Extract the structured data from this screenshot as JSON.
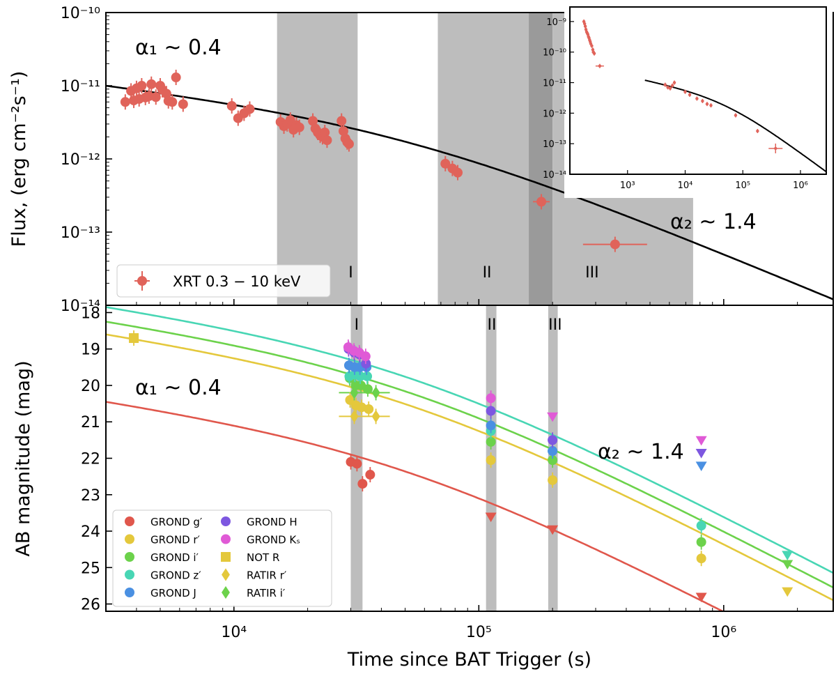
{
  "chart_data": [
    {
      "id": "xray",
      "type": "scatter",
      "ylabel": "Flux, (erg cm⁻²s⁻¹)",
      "xlim": [
        3000,
        2800000
      ],
      "ylim": [
        1e-14,
        1e-10
      ],
      "xscale": "log",
      "yscale": "log",
      "grid": false,
      "legend_placement": "bottom-left",
      "y_ticks": [
        {
          "value": 1e-10,
          "label": "10⁻¹⁰"
        },
        {
          "value": 1e-11,
          "label": "10⁻¹¹"
        },
        {
          "value": 1e-12,
          "label": "10⁻¹²"
        },
        {
          "value": 1e-13,
          "label": "10⁻¹³"
        },
        {
          "value": 1e-14,
          "label": "10⁻¹⁴"
        }
      ],
      "bands": [
        {
          "label": "I",
          "x0": 15000,
          "x1": 32000,
          "shade": "#bdbdbd"
        },
        {
          "label": "II",
          "x0": 68000,
          "x1": 160000,
          "shade": "#bdbdbd"
        },
        {
          "label": "",
          "x0": 160000,
          "x1": 200000,
          "shade": "#9a9a9a"
        },
        {
          "label": "III",
          "x0": 200000,
          "x1": 750000,
          "shade": "#bdbdbd"
        }
      ],
      "band_labels": [
        {
          "text": "I",
          "x": 30000
        },
        {
          "text": "II",
          "x": 108000
        },
        {
          "text": "III",
          "x": 290000
        }
      ],
      "annotations": [
        {
          "text": "α₁ ~ 0.4",
          "x": 4200,
          "y": 5.5e-11
        },
        {
          "text": "α₂ ~ 1.4",
          "x": 470000,
          "y": 1.05e-13
        }
      ],
      "model": {
        "A": 1e-11,
        "t0": 3000,
        "tb": 50000,
        "alpha1": 0.4,
        "alpha2": 1.4,
        "color": "#000000"
      },
      "series": [
        {
          "name": "XRT 0.3 − 10 keV",
          "color": "#e0635a",
          "points": [
            [
              3600,
              6e-12
            ],
            [
              3800,
              8.5e-12
            ],
            [
              3900,
              6.3e-12
            ],
            [
              4000,
              9.2e-12
            ],
            [
              4100,
              6.6e-12
            ],
            [
              4200,
              1e-11
            ],
            [
              4350,
              6.9e-12
            ],
            [
              4500,
              7.2e-12
            ],
            [
              4600,
              1.05e-11
            ],
            [
              4800,
              7e-12
            ],
            [
              5000,
              1e-11
            ],
            [
              5100,
              8.8e-12
            ],
            [
              5300,
              7.8e-12
            ],
            [
              5400,
              6.2e-12
            ],
            [
              5600,
              6e-12
            ],
            [
              5800,
              1.3e-11
            ],
            [
              6200,
              5.6e-12
            ],
            [
              9800,
              5.3e-12
            ],
            [
              10400,
              3.6e-12
            ],
            [
              11000,
              4.2e-12
            ],
            [
              11600,
              4.8e-12
            ],
            [
              15500,
              3.2e-12
            ],
            [
              16000,
              2.8e-12
            ],
            [
              16500,
              3e-12
            ],
            [
              17000,
              3.4e-12
            ],
            [
              17500,
              2.5e-12
            ],
            [
              18000,
              2.9e-12
            ],
            [
              18500,
              2.7e-12
            ],
            [
              21000,
              3.3e-12
            ],
            [
              21500,
              2.6e-12
            ],
            [
              22000,
              2.3e-12
            ],
            [
              22500,
              2.1e-12
            ],
            [
              23000,
              2e-12
            ],
            [
              23500,
              2.3e-12
            ],
            [
              24000,
              1.8e-12
            ],
            [
              27500,
              3.3e-12
            ],
            [
              28000,
              2.4e-12
            ],
            [
              28500,
              1.9e-12
            ],
            [
              29000,
              1.7e-12
            ],
            [
              29500,
              1.6e-12
            ],
            [
              73000,
              8.6e-13
            ],
            [
              78000,
              7.4e-13
            ],
            [
              82000,
              6.5e-13
            ],
            [
              180000,
              2.6e-13
            ],
            [
              360000,
              6.8e-14
            ]
          ]
        }
      ],
      "legend": [
        {
          "label": "XRT 0.3 − 10 keV",
          "marker": "circle",
          "color": "#e0635a"
        }
      ],
      "inset": {
        "xlim": [
          100,
          2800000
        ],
        "ylim": [
          1e-14,
          3e-09
        ],
        "x_ticks": [
          {
            "value": 1000,
            "label": "10³"
          },
          {
            "value": 10000,
            "label": "10⁴"
          },
          {
            "value": 100000,
            "label": "10⁵"
          },
          {
            "value": 1000000,
            "label": "10⁶"
          }
        ],
        "y_ticks": [
          {
            "value": 1e-09,
            "label": "10⁻⁹"
          },
          {
            "value": 1e-10,
            "label": "10⁻¹⁰"
          },
          {
            "value": 1e-11,
            "label": "10⁻¹¹"
          },
          {
            "value": 1e-12,
            "label": "10⁻¹²"
          },
          {
            "value": 1e-13,
            "label": "10⁻¹³"
          },
          {
            "value": 1e-14,
            "label": "10⁻¹⁴"
          }
        ],
        "model_start": 2000,
        "points": [
          [
            175,
            1e-09
          ],
          [
            180,
            8.5e-10
          ],
          [
            185,
            7e-10
          ],
          [
            190,
            5.5e-10
          ],
          [
            195,
            4.6e-10
          ],
          [
            200,
            4.2e-10
          ],
          [
            205,
            3.8e-10
          ],
          [
            210,
            3.2e-10
          ],
          [
            215,
            2.9e-10
          ],
          [
            220,
            2.5e-10
          ],
          [
            225,
            2.2e-10
          ],
          [
            230,
            1.9e-10
          ],
          [
            240,
            1.6e-10
          ],
          [
            250,
            1.2e-10
          ],
          [
            255,
            1e-10
          ],
          [
            265,
            9e-11
          ],
          [
            330,
            3.5e-11
          ],
          [
            4500,
            8.5e-12
          ],
          [
            5000,
            7e-12
          ],
          [
            5500,
            6.5e-12
          ],
          [
            6000,
            8e-12
          ],
          [
            6500,
            1e-11
          ],
          [
            10000,
            5e-12
          ],
          [
            12000,
            4e-12
          ],
          [
            16000,
            3e-12
          ],
          [
            20000,
            2.5e-12
          ],
          [
            24000,
            2e-12
          ],
          [
            28000,
            1.8e-12
          ],
          [
            75000,
            8.5e-13
          ],
          [
            180000,
            2.6e-13
          ],
          [
            370000,
            7e-14
          ]
        ]
      }
    },
    {
      "id": "optical",
      "type": "scatter",
      "xlabel": "Time since BAT Trigger (s)",
      "ylabel": "AB magnitude (mag)",
      "xlim": [
        3000,
        2800000
      ],
      "ylim": [
        26.2,
        17.8
      ],
      "xscale": "log",
      "grid": false,
      "legend_placement": "bottom-left",
      "x_ticks": [
        {
          "value": 10000,
          "label": "10⁴"
        },
        {
          "value": 100000,
          "label": "10⁵"
        },
        {
          "value": 1000000,
          "label": "10⁶"
        }
      ],
      "y_ticks": [
        {
          "value": 18,
          "label": "18"
        },
        {
          "value": 19,
          "label": "19"
        },
        {
          "value": 20,
          "label": "20"
        },
        {
          "value": 21,
          "label": "21"
        },
        {
          "value": 22,
          "label": "22"
        },
        {
          "value": 23,
          "label": "23"
        },
        {
          "value": 24,
          "label": "24"
        },
        {
          "value": 25,
          "label": "25"
        },
        {
          "value": 26,
          "label": "26"
        }
      ],
      "bands": [
        {
          "label": "I",
          "x0": 30000,
          "x1": 33500,
          "shade": "#bdbdbd"
        },
        {
          "label": "II",
          "x0": 107000,
          "x1": 118000,
          "shade": "#bdbdbd"
        },
        {
          "label": "III",
          "x0": 192000,
          "x1": 210000,
          "shade": "#bdbdbd"
        }
      ],
      "band_labels": [
        {
          "text": "I",
          "x": 31700
        },
        {
          "text": "II",
          "x": 113000
        },
        {
          "text": "III",
          "x": 205000
        }
      ],
      "annotations": [
        {
          "text": "α₁ ~ 0.4",
          "x": 4200,
          "y": 20.3
        },
        {
          "text": "α₂ ~ 1.4",
          "x": 400000,
          "y": 22.0
        }
      ],
      "models": [
        {
          "band": "z",
          "color": "#48d6b4",
          "m0": 17.85
        },
        {
          "band": "i",
          "color": "#6cd24b",
          "m0": 18.25
        },
        {
          "band": "r",
          "color": "#e4c83c",
          "m0": 18.6
        },
        {
          "band": "g",
          "color": "#e0574c",
          "m0": 20.45
        }
      ],
      "model_shape": {
        "t0": 3000,
        "tb": 50000,
        "alpha1": 0.4,
        "alpha2": 1.4
      },
      "series": [
        {
          "name": "GROND g′",
          "color": "#e0574c",
          "marker": "circle",
          "points": [
            [
              30000,
              22.1
            ],
            [
              31800,
              22.15
            ],
            [
              33500,
              22.7
            ],
            [
              36000,
              22.45
            ]
          ],
          "limits": [
            [
              112000,
              23.6
            ],
            [
              200000,
              23.95
            ],
            [
              810000,
              25.8
            ]
          ]
        },
        {
          "name": "GROND r′",
          "color": "#e4c83c",
          "marker": "circle",
          "points": [
            [
              29800,
              20.4
            ],
            [
              31500,
              20.55
            ],
            [
              33200,
              20.6
            ],
            [
              35500,
              20.65
            ],
            [
              112000,
              22.05
            ],
            [
              200000,
              22.6
            ],
            [
              810000,
              24.75
            ]
          ],
          "limits": [
            [
              1820000,
              25.65
            ]
          ]
        },
        {
          "name": "GROND i′",
          "color": "#6cd24b",
          "marker": "circle",
          "points": [
            [
              29700,
              19.8
            ],
            [
              31400,
              20.0
            ],
            [
              33000,
              20.0
            ],
            [
              35200,
              20.1
            ],
            [
              112000,
              21.55
            ],
            [
              200000,
              22.05
            ],
            [
              810000,
              24.3
            ]
          ],
          "limits": [
            [
              1820000,
              24.9
            ]
          ]
        },
        {
          "name": "GROND z′",
          "color": "#48d6b4",
          "marker": "circle",
          "points": [
            [
              29600,
              19.75
            ],
            [
              31200,
              19.7
            ],
            [
              32800,
              19.75
            ],
            [
              35000,
              19.75
            ],
            [
              112000,
              21.25
            ],
            [
              200000,
              21.8
            ],
            [
              810000,
              23.85
            ]
          ],
          "limits": [
            [
              1820000,
              24.65
            ]
          ]
        },
        {
          "name": "GROND J",
          "color": "#4a90e2",
          "marker": "circle",
          "points": [
            [
              29500,
              19.45
            ],
            [
              31100,
              19.5
            ],
            [
              32700,
              19.5
            ],
            [
              34800,
              19.5
            ],
            [
              112000,
              21.1
            ],
            [
              200000,
              21.8
            ]
          ],
          "limits": [
            [
              810000,
              22.2
            ]
          ]
        },
        {
          "name": "GROND H",
          "color": "#7d57e0",
          "marker": "circle",
          "points": [
            [
              29400,
              19.0
            ],
            [
              31000,
              19.1
            ],
            [
              32600,
              19.15
            ],
            [
              34600,
              19.4
            ],
            [
              112000,
              20.7
            ],
            [
              200000,
              21.5
            ]
          ],
          "limits": [
            [
              810000,
              21.85
            ]
          ]
        },
        {
          "name": "GROND Kₛ",
          "color": "#e05ad6",
          "marker": "circle",
          "points": [
            [
              29300,
              18.95
            ],
            [
              30900,
              19.05
            ],
            [
              32500,
              19.1
            ],
            [
              34500,
              19.2
            ],
            [
              112000,
              20.35
            ]
          ],
          "limits": [
            [
              200000,
              20.85
            ],
            [
              810000,
              21.5
            ]
          ]
        },
        {
          "name": "NOT R",
          "color": "#e4c83c",
          "marker": "square",
          "points": [
            [
              3900,
              18.7
            ]
          ],
          "limits": []
        },
        {
          "name": "RATIR r′",
          "color": "#e4c83c",
          "marker": "diamond",
          "points": [
            [
              31000,
              20.85
            ],
            [
              38000,
              20.85
            ]
          ],
          "limits": []
        },
        {
          "name": "RATIR i′",
          "color": "#6cd24b",
          "marker": "diamond",
          "points": [
            [
              31000,
              20.2
            ],
            [
              38000,
              20.2
            ]
          ],
          "limits": []
        }
      ],
      "legend": [
        {
          "label": "GROND g′",
          "marker": "circle",
          "color": "#e0574c"
        },
        {
          "label": "GROND r′",
          "marker": "circle",
          "color": "#e4c83c"
        },
        {
          "label": "GROND i′",
          "marker": "circle",
          "color": "#6cd24b"
        },
        {
          "label": "GROND z′",
          "marker": "circle",
          "color": "#48d6b4"
        },
        {
          "label": "GROND J",
          "marker": "circle",
          "color": "#4a90e2"
        },
        {
          "label": "GROND H",
          "marker": "circle",
          "color": "#7d57e0"
        },
        {
          "label": "GROND Kₛ",
          "marker": "circle",
          "color": "#e05ad6"
        },
        {
          "label": "NOT R",
          "marker": "square",
          "color": "#e4c83c"
        },
        {
          "label": "RATIR r′",
          "marker": "diamond",
          "color": "#e4c83c"
        },
        {
          "label": "RATIR i′",
          "marker": "diamond",
          "color": "#6cd24b"
        }
      ]
    }
  ]
}
